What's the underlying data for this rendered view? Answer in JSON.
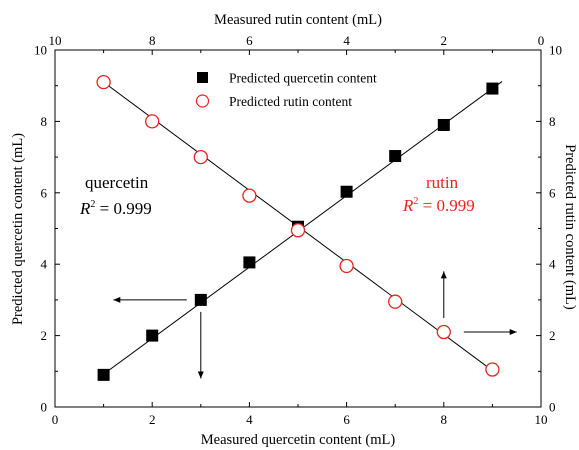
{
  "chart_data": {
    "type": "scatter",
    "xlabel_bottom": "Measured quercetin content (mL)",
    "xlabel_top": "Measured rutin content (mL)",
    "ylabel_left": "Predicted quercetin content (mL)",
    "ylabel_right": "Predicted rutin content (mL)",
    "xlim_bottom": [
      0,
      10
    ],
    "xlim_top": [
      10,
      0
    ],
    "ylim_left": [
      0,
      10
    ],
    "ylim_right": [
      0,
      10
    ],
    "x_ticks_bottom": [
      "0",
      "2",
      "4",
      "6",
      "8",
      "10"
    ],
    "x_ticks_top": [
      "10",
      "8",
      "6",
      "4",
      "2",
      "0"
    ],
    "y_ticks_left": [
      "0",
      "2",
      "4",
      "6",
      "8",
      "10"
    ],
    "y_ticks_right": [
      "0",
      "2",
      "4",
      "6",
      "8",
      "10"
    ],
    "grid": false,
    "legend_position": "top-center",
    "series": [
      {
        "name": "Predicted quercetin content",
        "marker": "filled-square",
        "color": "#000000",
        "axis": "bottom-left",
        "x": [
          1,
          2,
          3,
          4,
          5,
          6,
          7,
          8,
          9
        ],
        "y": [
          0.9,
          2.0,
          3.0,
          4.05,
          5.05,
          6.03,
          7.03,
          7.9,
          8.92
        ],
        "fit_line": {
          "x": [
            1,
            9.2
          ],
          "y": [
            0.92,
            9.12
          ]
        }
      },
      {
        "name": "Predicted rutin content",
        "marker": "open-circle",
        "color": "#e8231f",
        "axis": "top-right",
        "x": [
          9,
          8,
          7,
          6,
          5,
          4,
          3,
          2,
          1
        ],
        "y": [
          9.1,
          8.0,
          7.0,
          5.92,
          4.95,
          3.95,
          2.95,
          2.1,
          1.05
        ],
        "fit_line": {
          "x": [
            9,
            1
          ],
          "y": [
            9.1,
            1.02
          ]
        }
      }
    ],
    "annotations": [
      {
        "name": "quercetin",
        "label": "quercetin",
        "r2_prefix": "R",
        "r2_exp": "2",
        "r2_text": " = 0.999",
        "color": "#000000"
      },
      {
        "name": "rutin",
        "label": "rutin",
        "r2_prefix": "R",
        "r2_exp": "2",
        "r2_text": " = 0.999",
        "color": "#e8231f"
      }
    ]
  }
}
